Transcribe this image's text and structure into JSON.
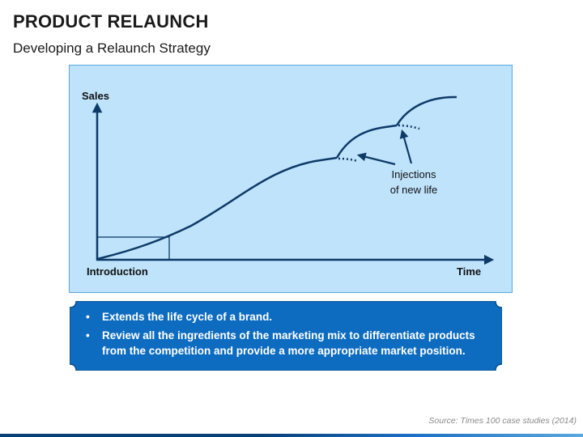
{
  "header": {
    "title": "PRODUCT RELAUNCH",
    "subtitle": "Developing a Relaunch Strategy"
  },
  "diagram": {
    "y_axis_label": "Sales",
    "x_axis_label": "Time",
    "origin_label": "Introduction",
    "annotation": [
      "Injections",
      "of new life"
    ]
  },
  "info_box": {
    "bullets": [
      {
        "marker": "•",
        "text": "Extends the life cycle of a brand."
      },
      {
        "marker": "•",
        "text": "Review all the ingredients of the marketing mix to differentiate products from the competition and provide a more appropriate market position."
      }
    ]
  },
  "footer": {
    "source": "Source: Times 100 case studies (2014)"
  },
  "colors": {
    "panel_bg": "#bfe3fb",
    "panel_border": "#5aa8df",
    "curve": "#0d3a67",
    "box_fill": "#0d6cc0",
    "box_border": "#0a4e8f"
  }
}
